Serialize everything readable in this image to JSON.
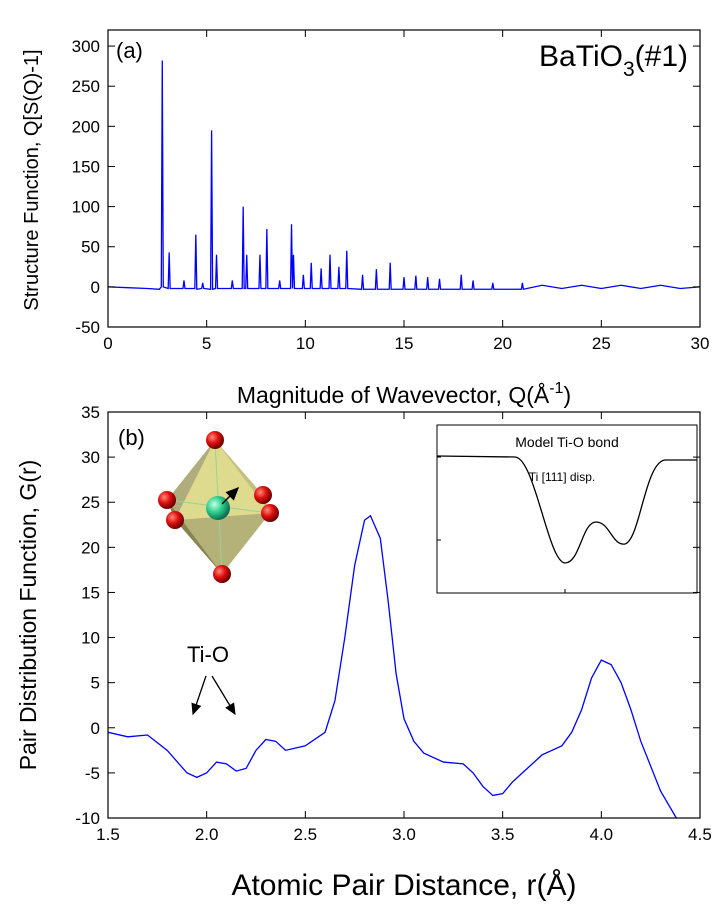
{
  "chart_data": [
    {
      "type": "line",
      "panel_label": "(a)",
      "title_main": "BaTiO",
      "title_sub": "3",
      "title_suffix": "(#1)",
      "xlabel_main": "Magnitude of Wavevector, Q(Å",
      "xlabel_sup": "-1",
      "xlabel_suffix": ")",
      "ylabel": "Structure Function, Q[S(Q)-1]",
      "color": "#0000ff",
      "xlim": [
        0,
        30
      ],
      "ylim": [
        -50,
        320
      ],
      "xticks": [
        0,
        5,
        10,
        15,
        20,
        25,
        30
      ],
      "yticks": [
        -50,
        0,
        50,
        100,
        150,
        200,
        250,
        300
      ],
      "x": [
        0,
        1,
        2,
        2.6,
        2.7,
        2.75,
        2.8,
        3.05,
        3.1,
        3.15,
        3.8,
        3.85,
        3.9,
        4.4,
        4.45,
        4.5,
        4.75,
        4.8,
        4.85,
        5.2,
        5.25,
        5.3,
        5.45,
        5.5,
        5.55,
        6.25,
        6.3,
        6.35,
        6.8,
        6.85,
        6.9,
        6.98,
        7.03,
        7.08,
        7.65,
        7.7,
        7.75,
        8,
        8.05,
        8.1,
        8.65,
        8.7,
        8.75,
        9.25,
        9.3,
        9.35,
        9.4,
        9.45,
        9.85,
        9.9,
        9.95,
        10.25,
        10.3,
        10.35,
        10.75,
        10.8,
        10.85,
        11.2,
        11.25,
        11.3,
        11.65,
        11.7,
        11.75,
        12.05,
        12.1,
        12.15,
        12.85,
        12.9,
        12.95,
        13.55,
        13.6,
        13.65,
        14.25,
        14.3,
        14.35,
        14.95,
        15,
        15.05,
        15.55,
        15.6,
        15.65,
        16.15,
        16.2,
        16.25,
        16.75,
        16.8,
        16.85,
        17.85,
        17.9,
        17.95,
        18.45,
        18.5,
        18.55,
        19.45,
        19.5,
        19.55,
        20.95,
        21,
        21.05,
        22,
        23,
        24,
        25,
        26,
        27,
        28,
        29,
        30
      ],
      "values": [
        0,
        -1,
        -2,
        -3,
        0,
        282,
        0,
        -2,
        43,
        -2,
        -2,
        8,
        -2,
        -2,
        65,
        -3,
        -2,
        5,
        -2,
        -3,
        195,
        -3,
        -2,
        40,
        -2,
        -2,
        8,
        -2,
        -2,
        100,
        -2,
        -2,
        40,
        -2,
        -2,
        40,
        -2,
        -2,
        72,
        -2,
        -2,
        8,
        -2,
        -2,
        78,
        -2,
        40,
        -2,
        -2,
        15,
        -2,
        -2,
        30,
        -2,
        -2,
        23,
        -2,
        -2,
        40,
        -2,
        -2,
        25,
        -2,
        -2,
        45,
        -2,
        -3,
        15,
        -3,
        -3,
        22,
        -3,
        -3,
        30,
        -3,
        -3,
        12,
        -3,
        -3,
        14,
        -3,
        -3,
        12,
        -3,
        -3,
        10,
        -3,
        -3,
        15,
        -3,
        -3,
        8,
        -3,
        -3,
        5,
        -3,
        -3,
        5,
        -3,
        2,
        -2,
        2,
        -2,
        2,
        -2,
        2,
        -2,
        0
      ]
    },
    {
      "type": "line",
      "panel_label": "(b)",
      "xlabel": "Atomic Pair Distance, r(Å)",
      "ylabel": "Pair Distribution Function, G(r)",
      "annotation": "Ti-O",
      "inset_title": "Model Ti-O bond",
      "inset_subtitle": "Ti [111] disp.",
      "color": "#0000ff",
      "xlim": [
        1.5,
        4.5
      ],
      "ylim": [
        -10,
        35
      ],
      "xticks": [
        1.5,
        {
          "value": 2,
          "label": "2.0"
        },
        2.5,
        {
          "value": 3,
          "label": "3.0"
        },
        3.5,
        {
          "value": 4,
          "label": "4.0"
        },
        4.5
      ],
      "yticks": [
        -10,
        -5,
        0,
        5,
        10,
        15,
        20,
        25,
        30,
        35
      ],
      "x": [
        1.5,
        1.6,
        1.7,
        1.8,
        1.9,
        1.95,
        2.0,
        2.05,
        2.1,
        2.15,
        2.2,
        2.25,
        2.3,
        2.35,
        2.4,
        2.5,
        2.6,
        2.65,
        2.7,
        2.75,
        2.8,
        2.83,
        2.88,
        2.92,
        2.96,
        3.0,
        3.05,
        3.1,
        3.2,
        3.3,
        3.35,
        3.4,
        3.45,
        3.5,
        3.55,
        3.6,
        3.7,
        3.8,
        3.85,
        3.9,
        3.95,
        4.0,
        4.05,
        4.1,
        4.15,
        4.2,
        4.3,
        4.38
      ],
      "values": [
        -0.5,
        -1,
        -0.8,
        -2.5,
        -5,
        -5.5,
        -5,
        -3.8,
        -4,
        -4.8,
        -4.5,
        -2.5,
        -1.3,
        -1.5,
        -2.5,
        -2,
        -0.5,
        3,
        10,
        18,
        23,
        23.5,
        21,
        14,
        6,
        1,
        -1.5,
        -2.8,
        -3.8,
        -4,
        -5,
        -6.5,
        -7.5,
        -7.3,
        -6,
        -5,
        -3,
        -2,
        -0.5,
        2,
        5.5,
        7.5,
        7,
        5,
        2,
        -1.5,
        -7,
        -10
      ]
    }
  ]
}
